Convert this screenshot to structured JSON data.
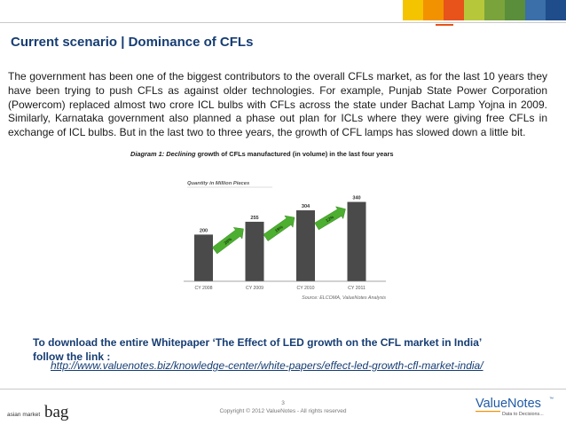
{
  "header": {
    "color_bar": [
      "#f5c400",
      "#f39200",
      "#e8521b",
      "#b6c83a",
      "#7aa33b",
      "#5a8e3a",
      "#3a6fa9",
      "#1f4c8a"
    ]
  },
  "title": "Current scenario | Dominance of CFLs",
  "body_text": "The government has been one of the biggest contributors to the overall CFLs market, as for the last 10 years they have been trying to push CFLs as against older technologies. For example, Punjab State Power Corporation (Powercom) replaced almost two crore ICL bulbs with CFLs across the state under Bachat Lamp Yojna in 2009. Similarly, Karnataka government also planned a phase out plan for ICLs where they were giving free CFLs in exchange of ICL bulbs. But in the last two to three years, the growth of CFL lamps has slowed down a little bit.",
  "caption": {
    "prefix": "Diagram 1: Declining",
    "rest": " growth of CFLs manufactured (in volume) in the last four years"
  },
  "chart_data": {
    "type": "bar",
    "title": "Quantity in Million Pieces",
    "categories": [
      "CY 2008",
      "CY 2009",
      "CY 2010",
      "CY 2011"
    ],
    "values": [
      200,
      255,
      304,
      340
    ],
    "growth_labels": [
      "28%",
      "19%",
      "12%"
    ],
    "source": "Source: ELCOMA, ValueNotes Analysis",
    "bar_color": "#4a4a4a",
    "arrow_color": "#4caf2f"
  },
  "download": {
    "line1": "To download the entire Whitepaper ‘The Effect of LED growth on the CFL market in India’",
    "line2": "follow the link :",
    "link": "http://www.valuenotes.biz/knowledge-center/white-papers/effect-led-growth-cfl-market-india/"
  },
  "footer": {
    "page_number": "3",
    "copyright": "Copyright © 2012 ValueNotes - All rights reserved",
    "left_logo_small": "asian market",
    "left_logo_big": "bag",
    "right_logo_name": "ValueNotes",
    "right_logo_tm": "™",
    "right_logo_tagline": "Data to Decisions..."
  }
}
